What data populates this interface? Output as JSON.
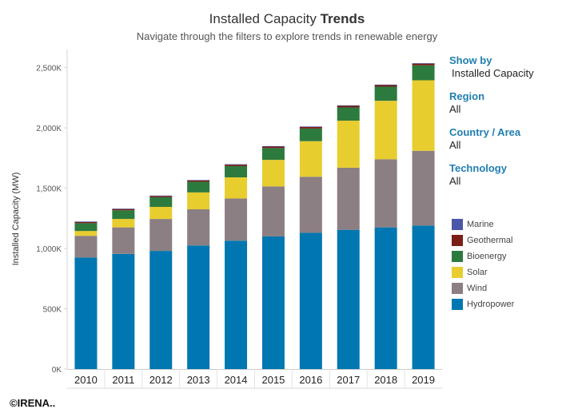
{
  "header": {
    "title_plain": "Installed Capacity ",
    "title_bold": "Trends",
    "subtitle": "Navigate through the filters to explore trends in renewable energy"
  },
  "filters": {
    "show_by": {
      "label": "Show by",
      "value": "Installed Capacity"
    },
    "region": {
      "label": "Region",
      "value": "All"
    },
    "country": {
      "label": "Country / Area",
      "value": "All"
    },
    "technology": {
      "label": "Technology",
      "value": "All"
    }
  },
  "copyright": "©IRENA..",
  "chart_data": {
    "type": "bar",
    "stacked": true,
    "ylabel": "Installed Capacity (MW)",
    "xlabel": "",
    "ylim": [
      0,
      2650000
    ],
    "yticks": [
      {
        "value": 0,
        "label": "0K"
      },
      {
        "value": 500000,
        "label": "500K"
      },
      {
        "value": 1000000,
        "label": "1,000K"
      },
      {
        "value": 1500000,
        "label": "1,500K"
      },
      {
        "value": 2000000,
        "label": "2,000K"
      },
      {
        "value": 2500000,
        "label": "2,500K"
      }
    ],
    "grid": false,
    "legend_position": "right",
    "categories": [
      "2010",
      "2011",
      "2012",
      "2013",
      "2014",
      "2015",
      "2016",
      "2017",
      "2018",
      "2019"
    ],
    "series": [
      {
        "name": "Hydropower",
        "color": "#0077b0",
        "values": [
          925000,
          955000,
          980000,
          1025000,
          1065000,
          1100000,
          1130000,
          1155000,
          1175000,
          1190000
        ]
      },
      {
        "name": "Wind",
        "color": "#8b7f83",
        "values": [
          180000,
          220000,
          265000,
          300000,
          350000,
          415000,
          465000,
          515000,
          565000,
          620000
        ]
      },
      {
        "name": "Solar",
        "color": "#e8cd2f",
        "values": [
          40000,
          70000,
          100000,
          140000,
          175000,
          220000,
          295000,
          390000,
          485000,
          585000
        ]
      },
      {
        "name": "Bioenergy",
        "color": "#2d7a3e",
        "values": [
          65000,
          72000,
          80000,
          88000,
          93000,
          98000,
          105000,
          110000,
          117000,
          124000
        ]
      },
      {
        "name": "Geothermal",
        "color": "#7a1e17",
        "values": [
          10000,
          10000,
          10000,
          11000,
          12000,
          12000,
          13000,
          13000,
          13000,
          14000
        ]
      },
      {
        "name": "Marine",
        "color": "#4a56a8",
        "values": [
          500,
          500,
          500,
          500,
          500,
          500,
          500,
          500,
          500,
          500
        ]
      }
    ]
  }
}
